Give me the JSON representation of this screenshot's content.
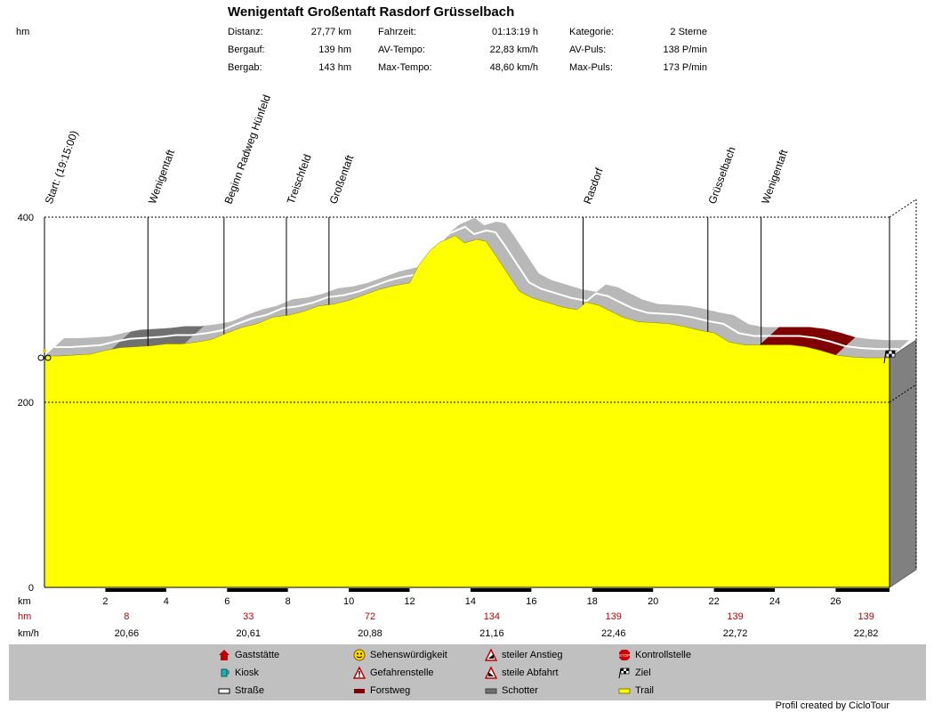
{
  "header": {
    "title": "Wenigentaft Großentaft Rasdorf Grüsselbach",
    "y_unit": "hm",
    "stats": [
      [
        {
          "label": "Distanz:",
          "value": "27,77 km"
        },
        {
          "label": "Fahrzeit:",
          "value": "01:13:19 h"
        },
        {
          "label": "Kategorie:",
          "value": "2 Sterne"
        }
      ],
      [
        {
          "label": "Bergauf:",
          "value": "139 hm"
        },
        {
          "label": "AV-Tempo:",
          "value": "22,83 km/h"
        },
        {
          "label": "AV-Puls:",
          "value": "138 P/min"
        }
      ],
      [
        {
          "label": "Bergab:",
          "value": "143 hm"
        },
        {
          "label": "Max-Tempo:",
          "value": "48,60 km/h"
        },
        {
          "label": "Max-Puls:",
          "value": "173 P/min"
        }
      ]
    ]
  },
  "chart_data": {
    "type": "area",
    "title": "Wenigentaft Großentaft Rasdorf Grüsselbach",
    "xlabel": "km",
    "ylabel": "hm",
    "xlim": [
      0,
      27.77
    ],
    "ylim": [
      0,
      400
    ],
    "y_ticks": [
      "400",
      "200",
      "0"
    ],
    "y_tick_values": [
      400,
      200,
      0
    ],
    "x_ticks": [
      2,
      4,
      6,
      8,
      10,
      12,
      14,
      16,
      18,
      20,
      22,
      24,
      26
    ],
    "x_tick_labels": [
      "2",
      "4",
      "6",
      "8",
      "10",
      "12",
      "14",
      "16",
      "18",
      "20",
      "22",
      "24",
      "26"
    ],
    "series": [
      {
        "x": [
          0,
          0.5,
          1,
          1.5,
          2,
          2.5,
          3,
          3.5,
          4,
          4.5,
          5,
          5.5,
          6,
          6.5,
          7,
          7.5,
          8,
          8.5,
          9,
          9.5,
          10,
          10.5,
          11,
          11.5,
          12,
          12.3,
          12.7,
          13,
          13.5,
          13.8,
          14.2,
          14.5,
          14.8,
          15.2,
          15.6,
          16,
          16.5,
          17,
          17.5,
          17.8,
          18.2,
          18.5,
          19,
          19.5,
          20,
          20.5,
          21,
          21.5,
          22,
          22.5,
          23,
          23.5,
          24,
          24.5,
          25,
          25.5,
          26,
          26.5,
          27,
          27.77
        ],
        "y": [
          250,
          250,
          251,
          252,
          256,
          259,
          260,
          261,
          263,
          263,
          265,
          268,
          275,
          281,
          285,
          292,
          294,
          298,
          304,
          306,
          310,
          316,
          322,
          326,
          329,
          348,
          365,
          373,
          380,
          372,
          376,
          374,
          360,
          340,
          320,
          313,
          308,
          303,
          300,
          308,
          305,
          300,
          292,
          287,
          286,
          285,
          282,
          278,
          275,
          265,
          262,
          262,
          262,
          262,
          260,
          256,
          251,
          249,
          248,
          248
        ]
      }
    ],
    "waypoints": [
      {
        "label": "Start: (19:15:00)",
        "km": 0
      },
      {
        "label": "Wenigentaft",
        "km": 3.4
      },
      {
        "label": "Beginn Radweg Hünfeld",
        "km": 5.9
      },
      {
        "label": "Treischfeld",
        "km": 7.95
      },
      {
        "label": "Großentaft",
        "km": 9.35
      },
      {
        "label": "Rasdorf",
        "km": 17.7
      },
      {
        "label": "Grüsselbach",
        "km": 21.8
      },
      {
        "label": "Wenigentaft",
        "km": 23.55
      }
    ],
    "surface_segments": [
      {
        "type": "Schotter",
        "from_km": 2.2,
        "to_km": 4.6
      },
      {
        "type": "Forstweg",
        "from_km": 23.5,
        "to_km": 26.0
      }
    ],
    "summary_rows": {
      "hm_label": "hm",
      "kmh_label": "km/h",
      "hm_values": [
        {
          "km": 2.7,
          "value": "8"
        },
        {
          "km": 6.7,
          "value": "33"
        },
        {
          "km": 10.7,
          "value": "72"
        },
        {
          "km": 14.7,
          "value": "134"
        },
        {
          "km": 18.7,
          "value": "139"
        },
        {
          "km": 22.7,
          "value": "139"
        },
        {
          "km": 27.0,
          "value": "139"
        }
      ],
      "kmh_values": [
        {
          "km": 2.7,
          "value": "20,66"
        },
        {
          "km": 6.7,
          "value": "20,61"
        },
        {
          "km": 10.7,
          "value": "20,88"
        },
        {
          "km": 14.7,
          "value": "21,16"
        },
        {
          "km": 18.7,
          "value": "22,46"
        },
        {
          "km": 22.7,
          "value": "22,72"
        },
        {
          "km": 27.0,
          "value": "22,82"
        }
      ]
    },
    "colors": {
      "trail": "#ffff00",
      "shadow": "#b8b8b8",
      "schotter": "#707070",
      "forstweg": "#800000",
      "side": "#808080"
    }
  },
  "legend": {
    "items": [
      {
        "icon": "house-icon",
        "label": "Gaststätte"
      },
      {
        "icon": "smiley-icon",
        "label": "Sehenswürdigkeit"
      },
      {
        "icon": "steep-climb-icon",
        "label": "steiler Anstieg"
      },
      {
        "icon": "stop-icon",
        "label": "Kontrollstelle"
      },
      {
        "icon": "cup-icon",
        "label": "Kiosk"
      },
      {
        "icon": "warning-icon",
        "label": "Gefahrenstelle"
      },
      {
        "icon": "steep-descent-icon",
        "label": "steile Abfahrt"
      },
      {
        "icon": "finish-flag-icon",
        "label": "Ziel"
      },
      {
        "icon": "road-swatch-icon",
        "label": "Straße"
      },
      {
        "icon": "forest-road-swatch-icon",
        "label": "Forstweg"
      },
      {
        "icon": "gravel-swatch-icon",
        "label": "Schotter"
      },
      {
        "icon": "trail-swatch-icon",
        "label": "Trail"
      }
    ],
    "credit": "Profil created by CicloTour"
  }
}
